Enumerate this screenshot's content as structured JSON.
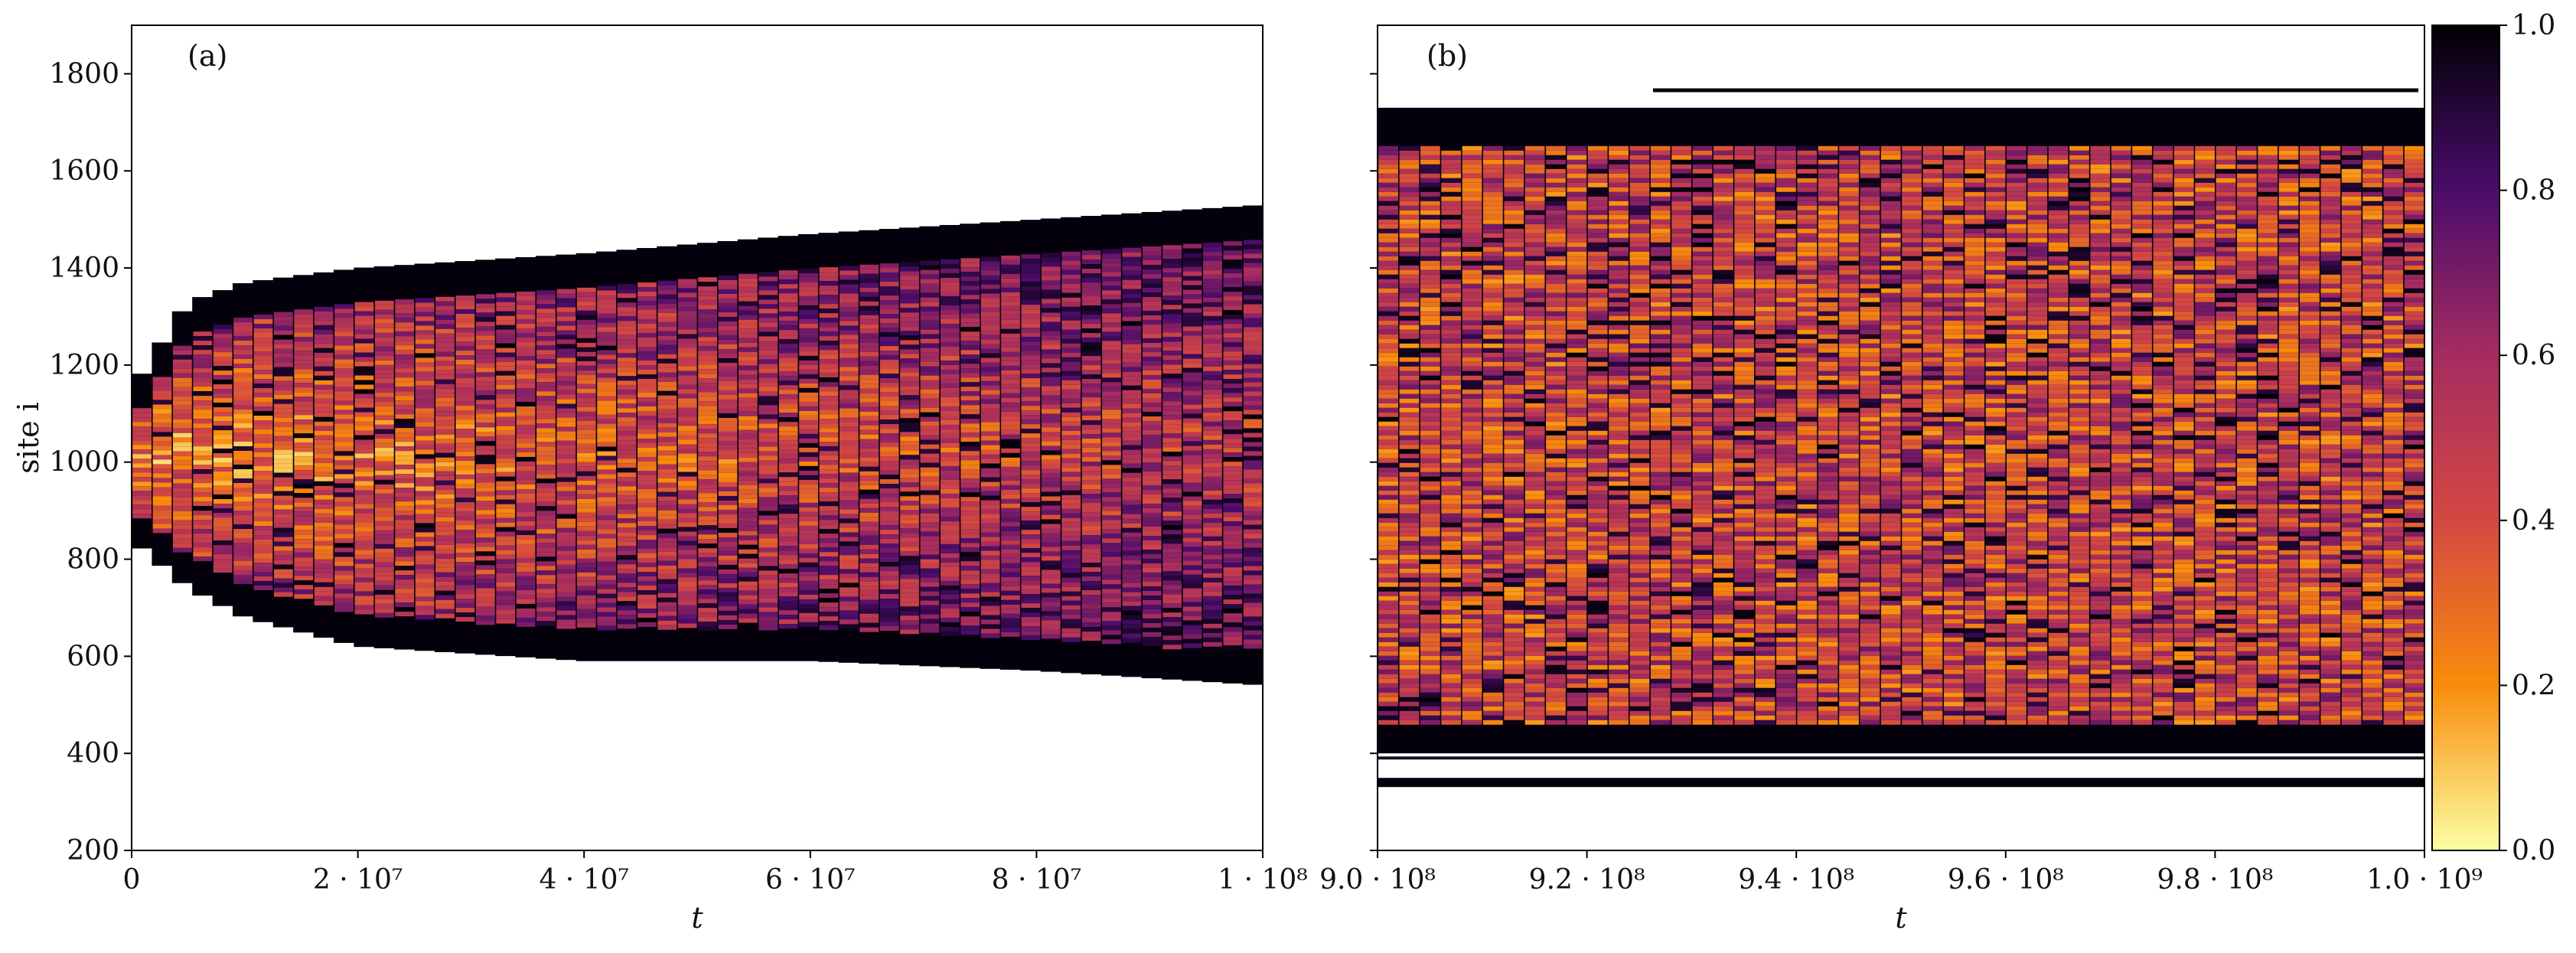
{
  "chart_data": [
    {
      "type": "heatmap",
      "panel_label": "(a)",
      "xlabel": "t",
      "ylabel": "site i",
      "xlim": [
        0,
        100000000
      ],
      "ylim": [
        200,
        1900
      ],
      "xticks": [
        0,
        20000000,
        40000000,
        60000000,
        80000000,
        100000000
      ],
      "xtick_labels": [
        "0",
        "2 · 10⁷",
        "4 · 10⁷",
        "6 · 10⁷",
        "8 · 10⁷",
        "1 · 10⁸"
      ],
      "yticks": [
        200,
        400,
        600,
        800,
        1000,
        1200,
        1400,
        1600,
        1800
      ],
      "ytick_labels": [
        "200",
        "400",
        "600",
        "800",
        "1000",
        "1200",
        "1400",
        "1600",
        "1800"
      ],
      "colormap": "inferno_r",
      "occupied_region": {
        "t": [
          0,
          5000000,
          10000000,
          20000000,
          40000000,
          60000000,
          80000000,
          100000000
        ],
        "site_lower": [
          840,
          740,
          680,
          620,
          590,
          590,
          570,
          540
        ],
        "site_upper": [
          1150,
          1330,
          1370,
          1400,
          1430,
          1470,
          1500,
          1530
        ]
      }
    },
    {
      "type": "heatmap",
      "panel_label": "(b)",
      "xlabel": "t",
      "ylabel": "",
      "xlim": [
        900000000,
        1000000000
      ],
      "ylim": [
        200,
        1900
      ],
      "xticks": [
        900000000,
        920000000,
        940000000,
        960000000,
        980000000,
        1000000000
      ],
      "xtick_labels": [
        "9.0 · 10⁸",
        "9.2 · 10⁸",
        "9.4 · 10⁸",
        "9.6 · 10⁸",
        "9.8 · 10⁸",
        "1.0 · 10⁹"
      ],
      "yticks": [
        200,
        400,
        600,
        800,
        1000,
        1200,
        1400,
        1600,
        1800
      ],
      "colormap": "inferno_r",
      "occupied_region": {
        "site_lower": 340,
        "site_upper": 1770,
        "dense_lower": 400,
        "dense_upper": 1730
      }
    }
  ],
  "colorbar": {
    "range": [
      0.0,
      1.0
    ],
    "ticks": [
      0.0,
      0.2,
      0.4,
      0.6,
      0.8,
      1.0
    ],
    "tick_labels": [
      "0.0",
      "0.2",
      "0.4",
      "0.6",
      "0.8",
      "1.0"
    ],
    "colormap": "inferno_r"
  }
}
